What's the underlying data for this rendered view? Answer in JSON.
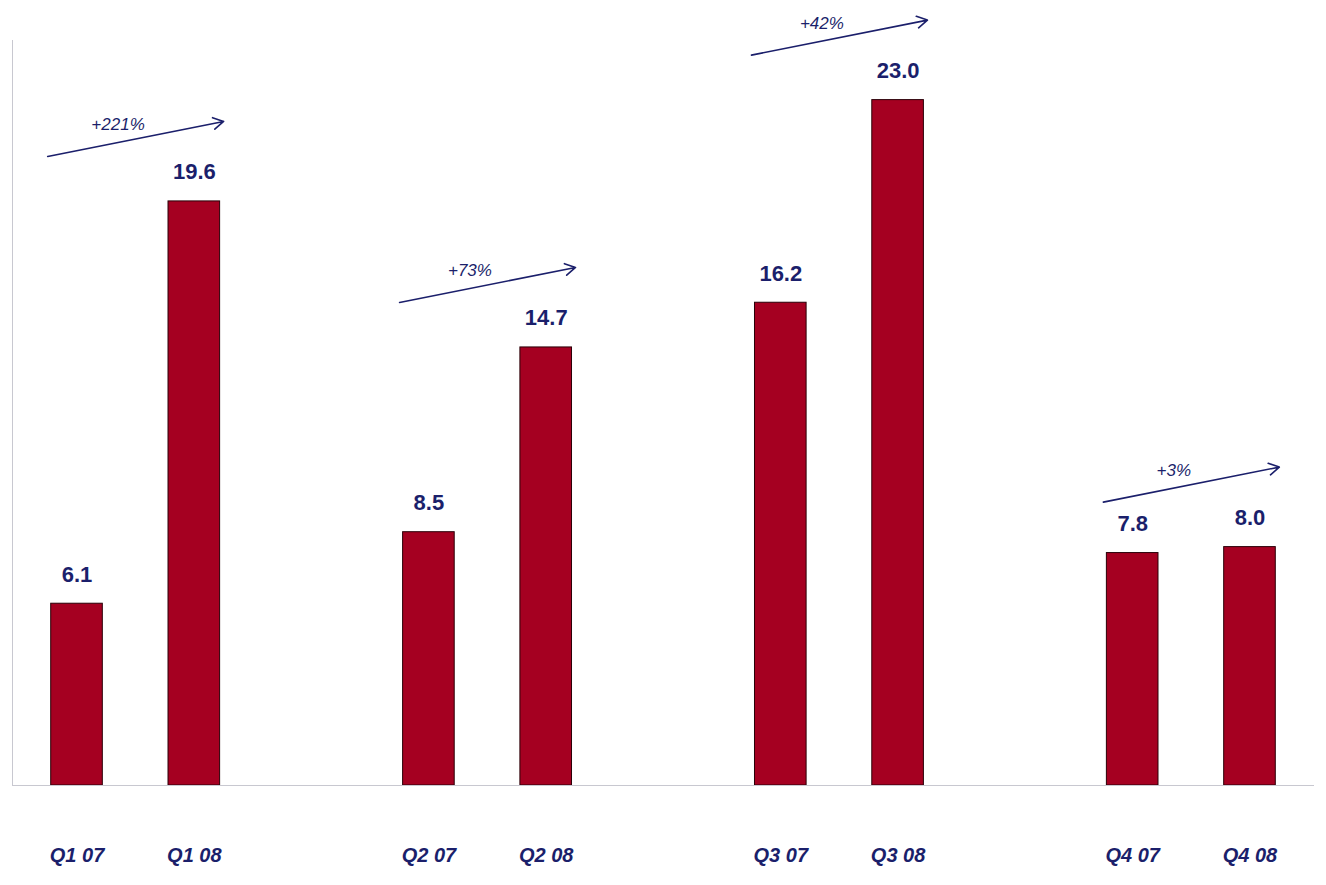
{
  "chart_data": {
    "type": "bar",
    "categories": [
      "Q1 07",
      "Q1 08",
      "Q2 07",
      "Q2 08",
      "Q3 07",
      "Q3 08",
      "Q4 07",
      "Q4 08"
    ],
    "values": [
      6.1,
      19.6,
      8.5,
      14.7,
      16.2,
      23,
      7.8,
      8
    ],
    "value_labels": [
      "6.1",
      "19.6",
      "8.5",
      "14.7",
      "16.2",
      "23.0",
      "7.8",
      "8.0"
    ],
    "color": "#a50021",
    "annotations": [
      "+221%",
      "+73%",
      "+42%",
      "+3%"
    ],
    "ylim": [
      0,
      25
    ],
    "data_labels": true,
    "tick_labels": "x",
    "grid": false
  }
}
